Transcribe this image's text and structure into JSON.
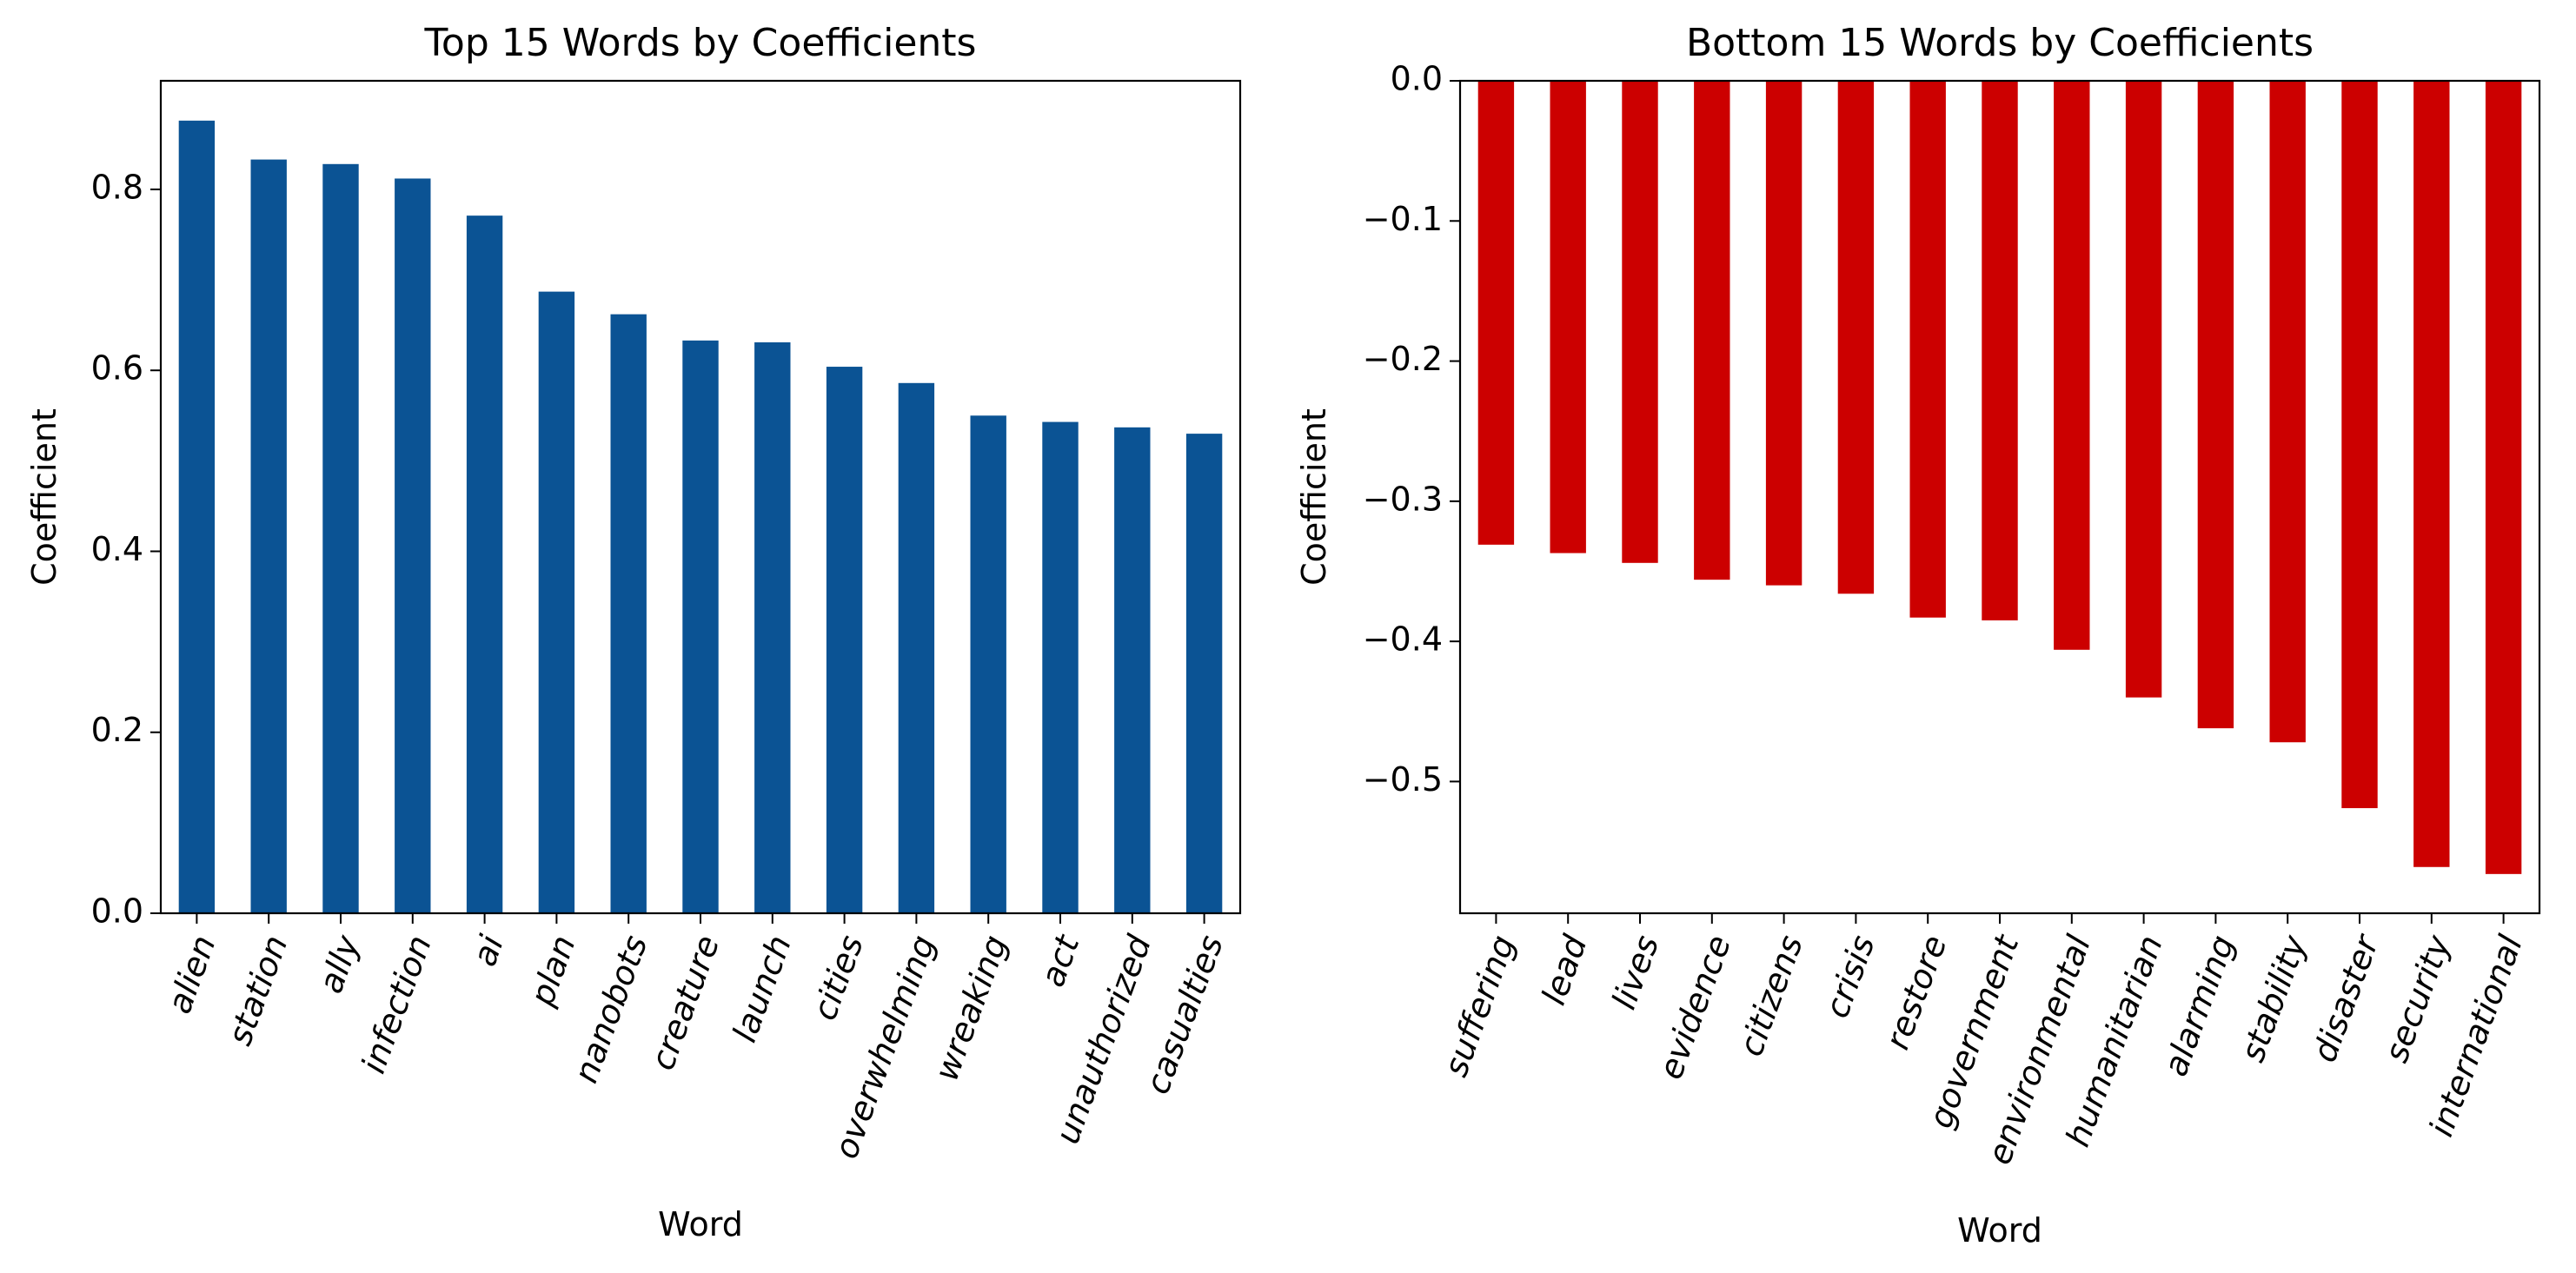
{
  "chart_data": [
    {
      "type": "bar",
      "title": "Top 15 Words by Coefficients",
      "xlabel": "Word",
      "ylabel": "Coefficient",
      "color": "#0b5394",
      "categories": [
        "alien",
        "station",
        "ally",
        "infection",
        "ai",
        "plan",
        "nanobots",
        "creature",
        "launch",
        "cities",
        "overwhelming",
        "wreaking",
        "act",
        "unauthorized",
        "casualties"
      ],
      "values": [
        0.876,
        0.833,
        0.828,
        0.812,
        0.771,
        0.687,
        0.662,
        0.633,
        0.631,
        0.604,
        0.586,
        0.55,
        0.543,
        0.537,
        0.53
      ],
      "ylim": [
        0.0,
        0.92
      ],
      "yticks": [
        0.0,
        0.2,
        0.4,
        0.6,
        0.8
      ],
      "ytick_labels": [
        "0.0",
        "0.2",
        "0.4",
        "0.6",
        "0.8"
      ],
      "grid": false
    },
    {
      "type": "bar",
      "title": "Bottom 15 Words by Coefficients",
      "xlabel": "Word",
      "ylabel": "Coefficient",
      "color": "#cc0000",
      "categories": [
        "suffering",
        "lead",
        "lives",
        "evidence",
        "citizens",
        "crisis",
        "restore",
        "government",
        "environmental",
        "humanitarian",
        "alarming",
        "stability",
        "disaster",
        "security",
        "international"
      ],
      "values": [
        -0.331,
        -0.337,
        -0.344,
        -0.356,
        -0.36,
        -0.366,
        -0.383,
        -0.385,
        -0.406,
        -0.44,
        -0.462,
        -0.472,
        -0.519,
        -0.561,
        -0.566
      ],
      "ylim": [
        -0.594,
        0.0
      ],
      "yticks": [
        0.0,
        -0.1,
        -0.2,
        -0.3,
        -0.4,
        -0.5
      ],
      "ytick_labels": [
        "0.0",
        "−0.1",
        "−0.2",
        "−0.3",
        "−0.4",
        "−0.5"
      ],
      "grid": false
    }
  ]
}
